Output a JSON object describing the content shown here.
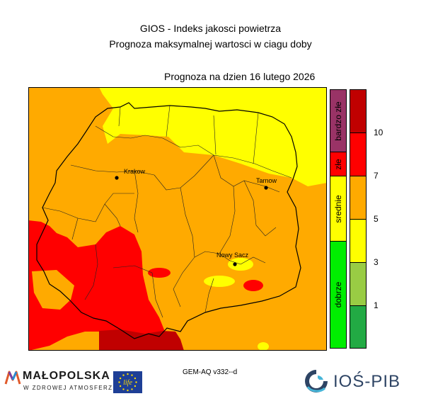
{
  "header": {
    "title_line1": "GIOS - Indeks jakosci powietrza",
    "title_line2": "Prognoza maksymalnej wartosci w ciagu doby",
    "forecast_date": "Prognoza na dzien  16 lutego 2026"
  },
  "map": {
    "cities": [
      {
        "name": "Krakow"
      },
      {
        "name": "Tarnow"
      },
      {
        "name": "Nowy Sacz"
      }
    ]
  },
  "legend": {
    "categories": [
      {
        "label": "bardzo złe",
        "color": "#993366"
      },
      {
        "label": "złe",
        "color": "#ff0000"
      },
      {
        "label": "srednie",
        "color": "#ffff00"
      },
      {
        "label": "dobrze",
        "color": "#00ee00"
      }
    ],
    "scale": {
      "colors": [
        "#c00000",
        "#ff0000",
        "#ffaa00",
        "#ffff00",
        "#99cc44",
        "#22aa44"
      ],
      "ticks": [
        "10",
        "7",
        "5",
        "3",
        "1"
      ]
    }
  },
  "footer": {
    "model": "GEM-AQ v332--d",
    "malopolska_name": "MAŁOPOLSKA",
    "malopolska_slogan": "W ZDROWEJ ATMOSFERZE",
    "eu_life_text": "life",
    "ios_name": "IOŚ-PIB"
  }
}
